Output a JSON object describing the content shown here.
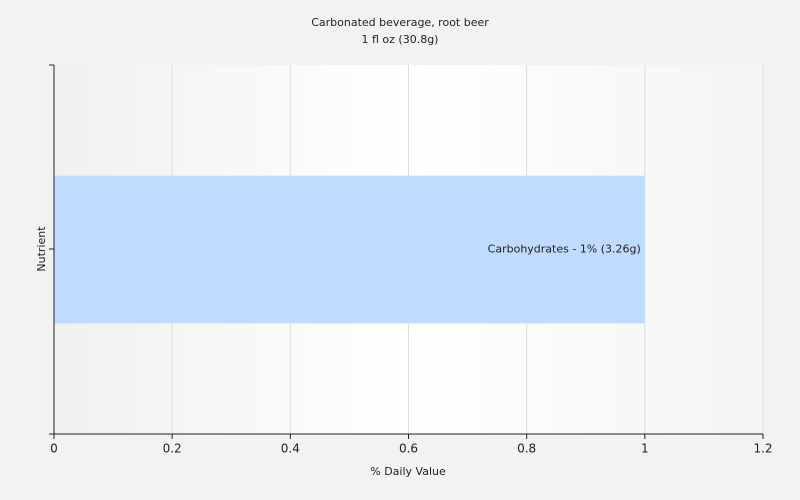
{
  "chart_data": {
    "type": "hbar",
    "title": "Carbonated beverage, root beer",
    "subtitle": "1 fl oz (30.8g)",
    "x_label": "% Daily Value",
    "y_label": "Nutrient",
    "categories": [
      null
    ],
    "values": [
      1
    ],
    "value_labels": [
      "Carbohydrates - 1% (3.26g)"
    ],
    "color": "#bfdbff",
    "xlim": [
      0,
      1.2
    ],
    "xticks": [
      0,
      0.2,
      0.4,
      0.6,
      0.8,
      1,
      1.2
    ],
    "grid": true
  }
}
